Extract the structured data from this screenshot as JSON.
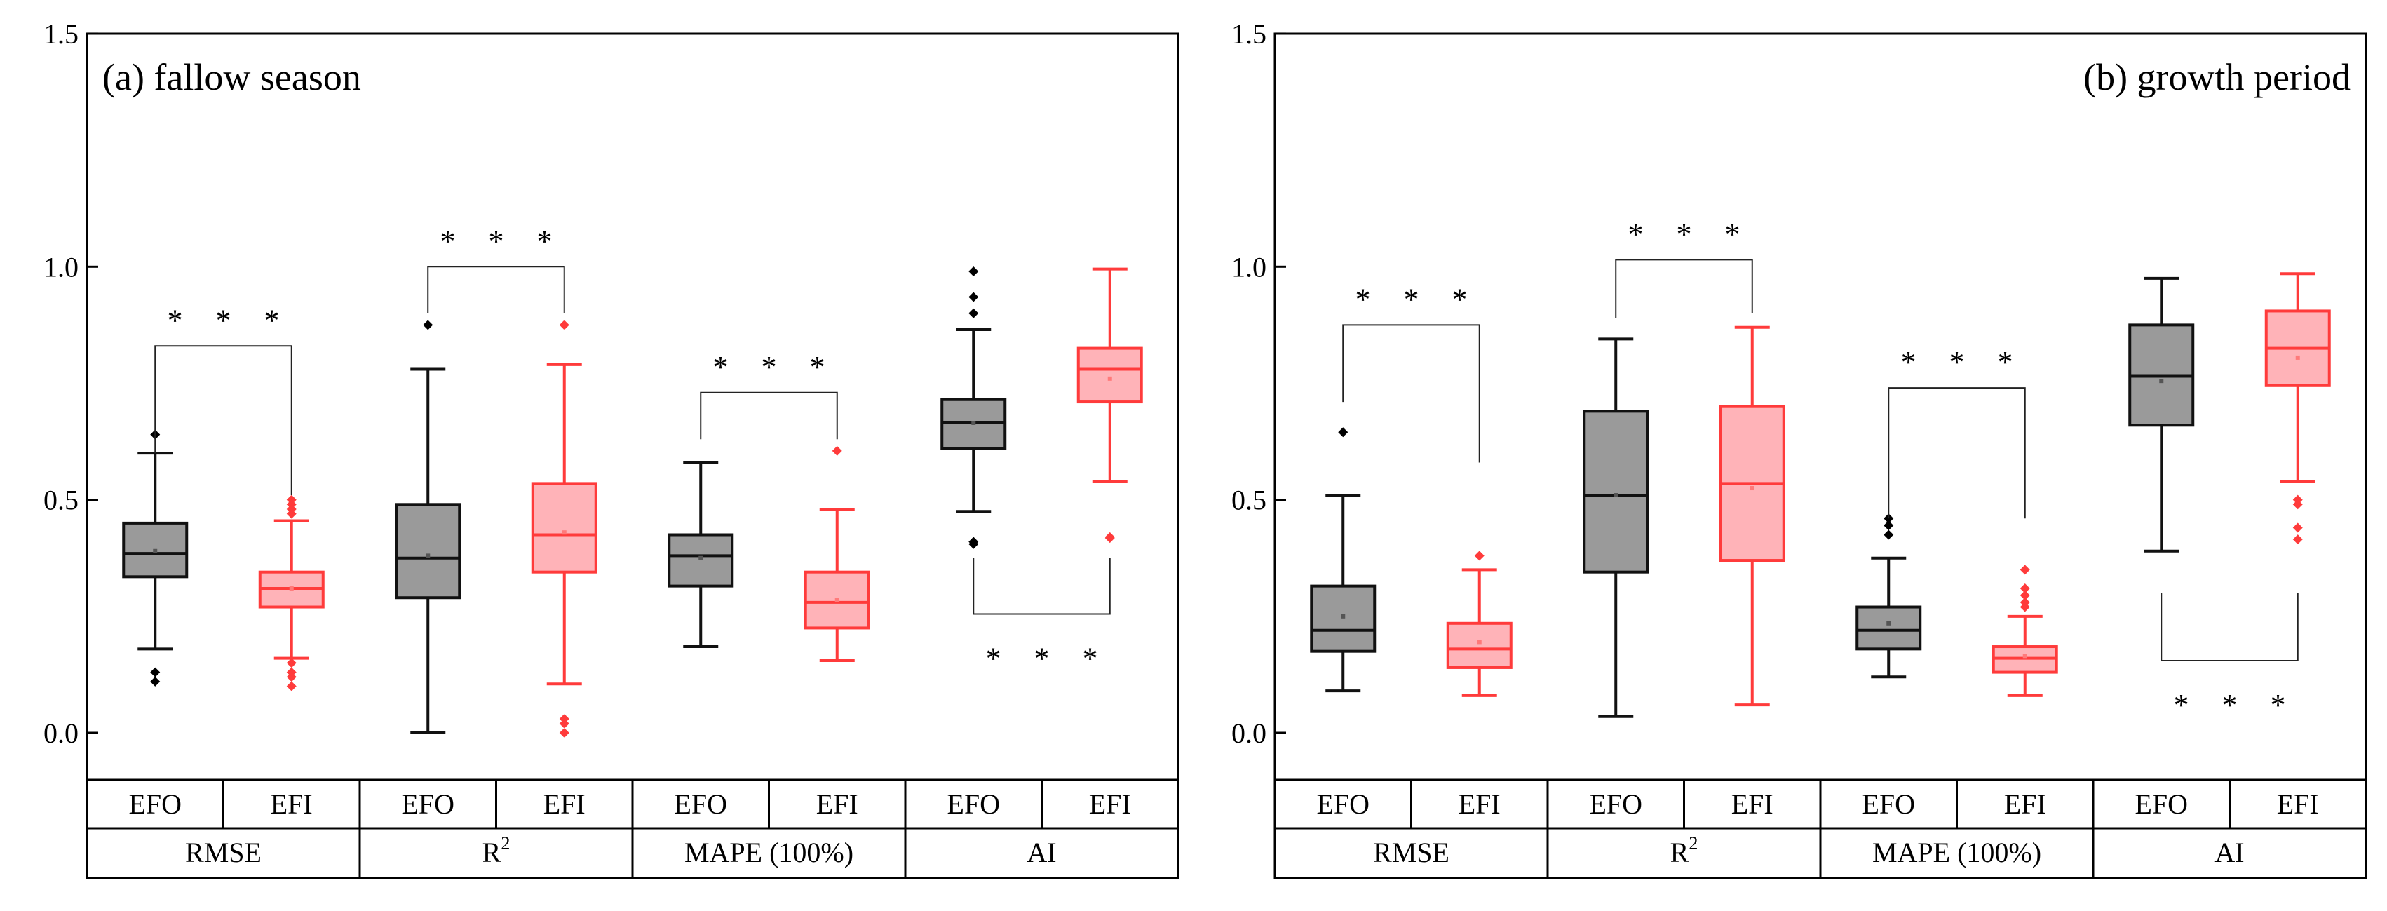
{
  "figure": {
    "colors": {
      "EFO_face": "#9a9a9a",
      "EFO_edge": "#111111",
      "EFI_face": "#ffb3b8",
      "EFI_edge": "#ff3b3b",
      "axis": "#000000"
    },
    "legend": "none"
  },
  "chart_data": [
    {
      "type": "boxplot",
      "title": "(a) fallow season",
      "title_placement": "top-left",
      "ylim": [
        -0.2,
        1.5
      ],
      "yticks": [
        0.0,
        0.5,
        1.0,
        1.5
      ],
      "ytick_labels": [
        "0.0",
        "0.5",
        "1.0",
        "1.5"
      ],
      "xlabel": "",
      "ylabel": "",
      "grid": false,
      "groups": [
        {
          "metric": "RMSE",
          "metric_sup": "",
          "boxes": [
            {
              "name": "EFO",
              "whisker_low": 0.18,
              "q1": 0.335,
              "median": 0.385,
              "q3": 0.45,
              "whisker_high": 0.6,
              "mean": 0.39,
              "outliers": [
                0.64,
                0.13,
                0.11
              ]
            },
            {
              "name": "EFI",
              "whisker_low": 0.16,
              "q1": 0.27,
              "median": 0.31,
              "q3": 0.345,
              "whisker_high": 0.455,
              "mean": 0.31,
              "outliers": [
                0.5,
                0.49,
                0.48,
                0.47,
                0.15,
                0.13,
                0.12,
                0.1
              ]
            }
          ],
          "significance": {
            "label": "* * *",
            "position": "above",
            "bracket_y": 0.83,
            "left_y": 0.6,
            "right_y": 0.51
          }
        },
        {
          "metric": "R",
          "metric_sup": "2",
          "boxes": [
            {
              "name": "EFO",
              "whisker_low": 0.0,
              "q1": 0.29,
              "median": 0.375,
              "q3": 0.49,
              "whisker_high": 0.78,
              "mean": 0.38,
              "outliers": [
                0.875
              ]
            },
            {
              "name": "EFI",
              "whisker_low": 0.105,
              "q1": 0.345,
              "median": 0.425,
              "q3": 0.535,
              "whisker_high": 0.79,
              "mean": 0.43,
              "outliers": [
                0.875,
                0.03,
                0.02,
                0.0
              ]
            }
          ],
          "significance": {
            "label": "* * *",
            "position": "above",
            "bracket_y": 1.0,
            "left_y": 0.9,
            "right_y": 0.9
          }
        },
        {
          "metric": "MAPE (100%)",
          "metric_sup": "",
          "boxes": [
            {
              "name": "EFO",
              "whisker_low": 0.185,
              "q1": 0.315,
              "median": 0.38,
              "q3": 0.425,
              "whisker_high": 0.58,
              "mean": 0.375,
              "outliers": []
            },
            {
              "name": "EFI",
              "whisker_low": 0.155,
              "q1": 0.225,
              "median": 0.28,
              "q3": 0.345,
              "whisker_high": 0.48,
              "mean": 0.285,
              "outliers": [
                0.605
              ]
            }
          ],
          "significance": {
            "label": "* * *",
            "position": "above",
            "bracket_y": 0.73,
            "left_y": 0.63,
            "right_y": 0.63
          }
        },
        {
          "metric": "AI",
          "metric_sup": "",
          "boxes": [
            {
              "name": "EFO",
              "whisker_low": 0.475,
              "q1": 0.61,
              "median": 0.665,
              "q3": 0.715,
              "whisker_high": 0.865,
              "mean": 0.665,
              "outliers": [
                0.99,
                0.935,
                0.9,
                0.41,
                0.405
              ]
            },
            {
              "name": "EFI",
              "whisker_low": 0.54,
              "q1": 0.71,
              "median": 0.78,
              "q3": 0.825,
              "whisker_high": 0.995,
              "mean": 0.76,
              "outliers": [
                0.42,
                0.418
              ]
            }
          ],
          "significance": {
            "label": "* * *",
            "position": "below",
            "bracket_y": 0.255,
            "left_y": 0.375,
            "right_y": 0.375
          }
        }
      ]
    },
    {
      "type": "boxplot",
      "title": "(b) growth period",
      "title_placement": "top-right",
      "ylim": [
        -0.2,
        1.5
      ],
      "yticks": [
        0.0,
        0.5,
        1.0,
        1.5
      ],
      "ytick_labels": [
        "0.0",
        "0.5",
        "1.0",
        "1.5"
      ],
      "xlabel": "",
      "ylabel": "",
      "grid": false,
      "groups": [
        {
          "metric": "RMSE",
          "metric_sup": "",
          "boxes": [
            {
              "name": "EFO",
              "whisker_low": 0.09,
              "q1": 0.175,
              "median": 0.22,
              "q3": 0.315,
              "whisker_high": 0.51,
              "mean": 0.25,
              "outliers": [
                0.645
              ]
            },
            {
              "name": "EFI",
              "whisker_low": 0.08,
              "q1": 0.14,
              "median": 0.18,
              "q3": 0.235,
              "whisker_high": 0.35,
              "mean": 0.195,
              "outliers": [
                0.38
              ]
            }
          ],
          "significance": {
            "label": "* * *",
            "position": "above",
            "bracket_y": 0.875,
            "left_y": 0.71,
            "right_y": 0.58
          }
        },
        {
          "metric": "R",
          "metric_sup": "2",
          "boxes": [
            {
              "name": "EFO",
              "whisker_low": 0.035,
              "q1": 0.345,
              "median": 0.51,
              "q3": 0.69,
              "whisker_high": 0.845,
              "mean": 0.51,
              "outliers": []
            },
            {
              "name": "EFI",
              "whisker_low": 0.06,
              "q1": 0.37,
              "median": 0.535,
              "q3": 0.7,
              "whisker_high": 0.87,
              "mean": 0.525,
              "outliers": []
            }
          ],
          "significance": {
            "label": "* * *",
            "position": "above",
            "bracket_y": 1.015,
            "left_y": 0.89,
            "right_y": 0.9
          }
        },
        {
          "metric": "MAPE (100%)",
          "metric_sup": "",
          "boxes": [
            {
              "name": "EFO",
              "whisker_low": 0.12,
              "q1": 0.18,
              "median": 0.22,
              "q3": 0.27,
              "whisker_high": 0.375,
              "mean": 0.235,
              "outliers": [
                0.46,
                0.445,
                0.425
              ]
            },
            {
              "name": "EFI",
              "whisker_low": 0.08,
              "q1": 0.13,
              "median": 0.16,
              "q3": 0.185,
              "whisker_high": 0.25,
              "mean": 0.165,
              "outliers": [
                0.35,
                0.31,
                0.295,
                0.28,
                0.27
              ]
            }
          ],
          "significance": {
            "label": "* * *",
            "position": "above",
            "bracket_y": 0.74,
            "left_y": 0.46,
            "right_y": 0.46
          }
        },
        {
          "metric": "AI",
          "metric_sup": "",
          "boxes": [
            {
              "name": "EFO",
              "whisker_low": 0.39,
              "q1": 0.66,
              "median": 0.765,
              "q3": 0.875,
              "whisker_high": 0.975,
              "mean": 0.755,
              "outliers": []
            },
            {
              "name": "EFI",
              "whisker_low": 0.54,
              "q1": 0.745,
              "median": 0.825,
              "q3": 0.905,
              "whisker_high": 0.985,
              "mean": 0.805,
              "outliers": [
                0.5,
                0.49,
                0.44,
                0.415
              ]
            }
          ],
          "significance": {
            "label": "* * *",
            "position": "below",
            "bracket_y": 0.155,
            "left_y": 0.3,
            "right_y": 0.3
          }
        }
      ]
    }
  ]
}
